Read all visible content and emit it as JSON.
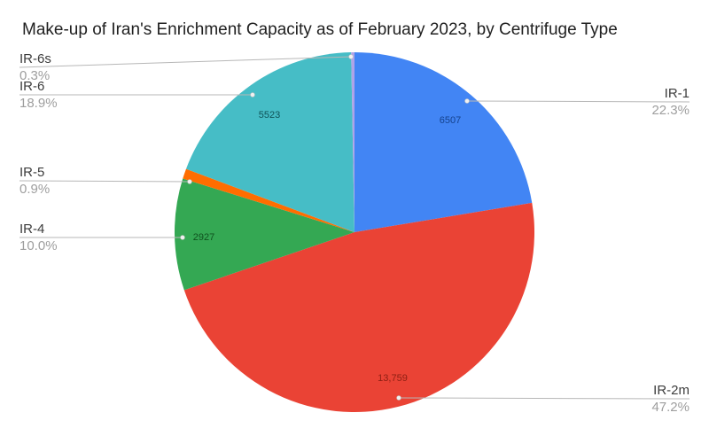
{
  "title": "Make-up of Iran's Enrichment Capacity as of February 2023, by Centrifuge Type",
  "chart_data": {
    "type": "pie",
    "title": "Make-up of Iran's Enrichment Capacity as of February 2023, by Centrifuge Type",
    "legend_position": "labeled-callouts",
    "slices": [
      {
        "label": "IR-1",
        "percent": 22.3,
        "percent_label": "22.3%",
        "value": 6507,
        "value_label": "6507",
        "color": "#4285F4",
        "value_text_color": "#15428d"
      },
      {
        "label": "IR-2m",
        "percent": 47.2,
        "percent_label": "47.2%",
        "value": 13759,
        "value_label": "13,759",
        "color": "#EA4335",
        "value_text_color": "#8e2014"
      },
      {
        "label": "IR-4",
        "percent": 10.0,
        "percent_label": "10.0%",
        "value": 2927,
        "value_label": "2927",
        "color": "#34A853",
        "value_text_color": "#10521f"
      },
      {
        "label": "IR-5",
        "percent": 0.9,
        "percent_label": "0.9%",
        "color": "#FF6D00"
      },
      {
        "label": "IR-6",
        "percent": 18.9,
        "percent_label": "18.9%",
        "value": 5523,
        "value_label": "5523",
        "color": "#46BDC6",
        "value_text_color": "#0f5257"
      },
      {
        "label": "IR-6s",
        "percent": 0.3,
        "percent_label": "0.3%",
        "color": "#AFA3E8"
      }
    ]
  }
}
